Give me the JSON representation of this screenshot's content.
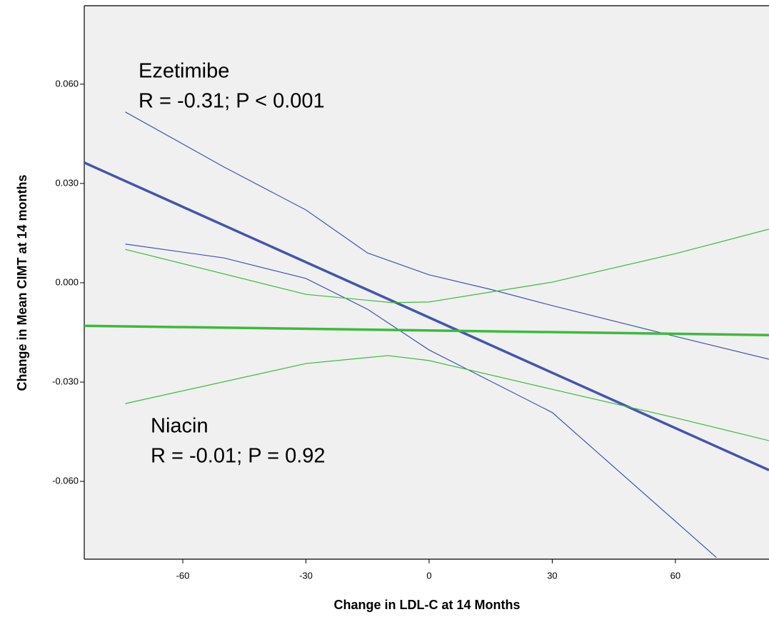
{
  "chart_data": {
    "type": "line",
    "xlabel": "Change in LDL-C at 14 Months",
    "ylabel": "Change in Mean CIMT at 14 months",
    "annotations": [
      [
        "Ezetimibe",
        "R = -0.31; P < 0.001"
      ],
      [
        "Niacin",
        "R = -0.01; P = 0.92"
      ]
    ],
    "xlim": [
      -84,
      82.8
    ],
    "ylim": [
      -0.0835,
      0.0837
    ],
    "xticks": [
      -60,
      -30,
      0,
      30,
      60
    ],
    "yticks": [
      {
        "value": 0.06,
        "label": "0.060"
      },
      {
        "value": 0.03,
        "label": "0.030"
      },
      {
        "value": 0,
        "label": "0.000"
      },
      {
        "value": -0.03,
        "label": "-0.030"
      },
      {
        "value": -0.06,
        "label": "-0.060"
      }
    ],
    "series": [
      {
        "color": "#4355b0",
        "linewidth": 3.5,
        "x": [
          -84,
          82.8
        ],
        "values": [
          0.0363,
          -0.0566
        ]
      },
      {
        "color": "#4355b0",
        "linewidth": 1.2,
        "x": [
          -74,
          -50,
          -30,
          -15,
          0,
          15,
          30,
          60,
          82.8
        ],
        "values": [
          0.0516,
          0.035,
          0.022,
          0.009,
          0.0024,
          -0.002,
          -0.0069,
          -0.0162,
          -0.0231
        ]
      },
      {
        "color": "#4355b0",
        "linewidth": 1.2,
        "x": [
          -74,
          -50,
          -30,
          -15,
          0,
          30,
          70
        ],
        "values": [
          0.0117,
          0.0075,
          0.0013,
          -0.008,
          -0.0203,
          -0.0392,
          -0.083
        ]
      },
      {
        "color": "#3dba3d",
        "linewidth": 3.5,
        "x": [
          -84,
          82.8
        ],
        "values": [
          -0.013,
          -0.0158
        ]
      },
      {
        "color": "#3dba3d",
        "linewidth": 1.2,
        "x": [
          -74,
          -30,
          -9,
          0,
          30,
          60,
          82.8
        ],
        "values": [
          0.0101,
          -0.0035,
          -0.006,
          -0.0058,
          0.0002,
          0.0088,
          0.0162
        ]
      },
      {
        "color": "#3dba3d",
        "linewidth": 1.2,
        "x": [
          -74,
          -30,
          -10,
          0,
          30,
          60,
          82.8
        ],
        "values": [
          -0.0365,
          -0.0244,
          -0.022,
          -0.0235,
          -0.0322,
          -0.0408,
          -0.0477
        ]
      }
    ]
  }
}
